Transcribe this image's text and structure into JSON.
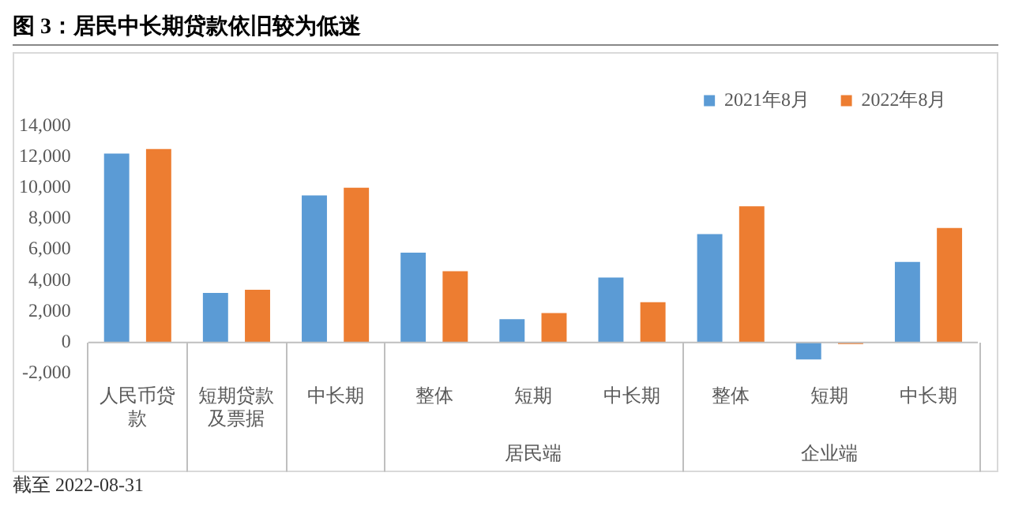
{
  "chart_data": {
    "type": "bar",
    "title": "图 3：居民中长期贷款依旧较为低迷",
    "categories": [
      "人民币贷款",
      "短期贷款及票据",
      "中长期",
      "整体",
      "短期",
      "中长期",
      "整体",
      "短期",
      "中长期"
    ],
    "series": [
      {
        "name": "2021年8月",
        "color": "#5b9bd5",
        "values": [
          12200,
          3200,
          9500,
          5800,
          1500,
          4200,
          7000,
          -1100,
          5200
        ]
      },
      {
        "name": "2022年8月",
        "color": "#ed7d31",
        "values": [
          12500,
          3400,
          10000,
          4600,
          1900,
          2600,
          8800,
          -100,
          7400
        ]
      }
    ],
    "ylim": [
      -2000,
      14000
    ],
    "yticks": [
      {
        "value": -2000,
        "label": "-2,000"
      },
      0,
      {
        "value": 2000,
        "label": "2,000"
      },
      {
        "value": 4000,
        "label": "4,000"
      },
      {
        "value": 6000,
        "label": "6,000"
      },
      {
        "value": 8000,
        "label": "8,000"
      },
      {
        "value": 10000,
        "label": "10,000"
      },
      {
        "value": 12000,
        "label": "12,000"
      },
      {
        "value": 14000,
        "label": "14,000"
      }
    ],
    "grid": false,
    "legend": "top right",
    "annotations": [
      "居民端",
      "企业端",
      "截至 2022-08-31"
    ]
  }
}
